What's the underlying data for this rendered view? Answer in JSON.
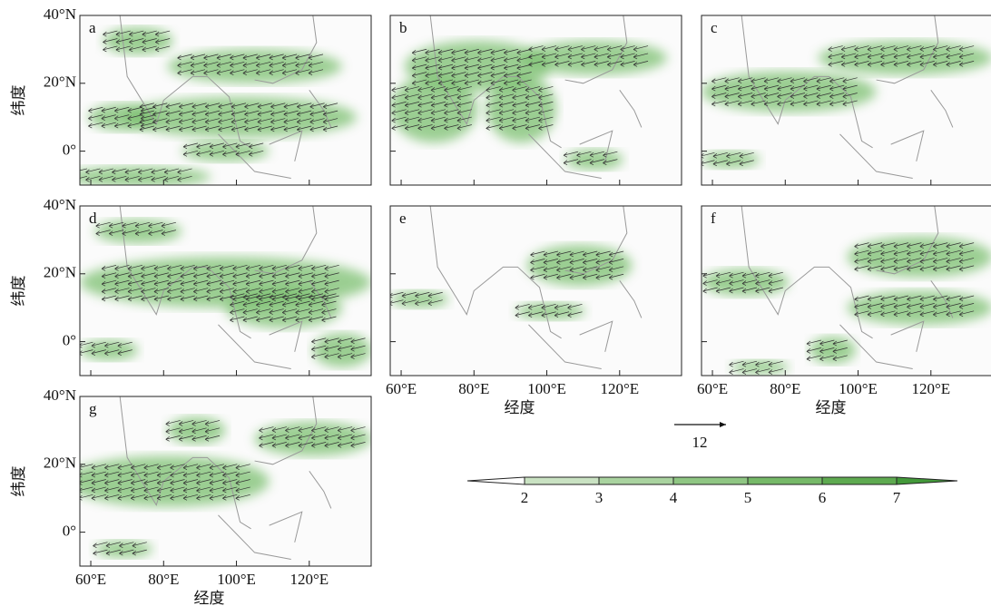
{
  "panels": [
    {
      "label": "a"
    },
    {
      "label": "b"
    },
    {
      "label": "c"
    },
    {
      "label": "d"
    },
    {
      "label": "e"
    },
    {
      "label": "f"
    },
    {
      "label": "g"
    }
  ],
  "lat_axis": {
    "label": "纬度",
    "lim": [
      -10,
      40
    ],
    "ticks": [
      {
        "value": 40,
        "label": "40°N"
      },
      {
        "value": 20,
        "label": "20°N"
      },
      {
        "value": 0,
        "label": "0°"
      }
    ]
  },
  "lon_axis": {
    "label": "经度",
    "lim": [
      57,
      137
    ],
    "ticks": [
      {
        "value": 60,
        "label": "60°E"
      },
      {
        "value": 80,
        "label": "80°E"
      },
      {
        "value": 100,
        "label": "100°E"
      },
      {
        "value": 120,
        "label": "120°E"
      }
    ]
  },
  "colorbar": {
    "ticks": [
      2,
      3,
      4,
      5,
      6,
      7
    ],
    "colors": [
      "#c9e2c2",
      "#a9d39f",
      "#8fc683",
      "#76b968",
      "#5eaa50",
      "#43993a"
    ]
  },
  "reference_vector": {
    "value": 12
  }
}
